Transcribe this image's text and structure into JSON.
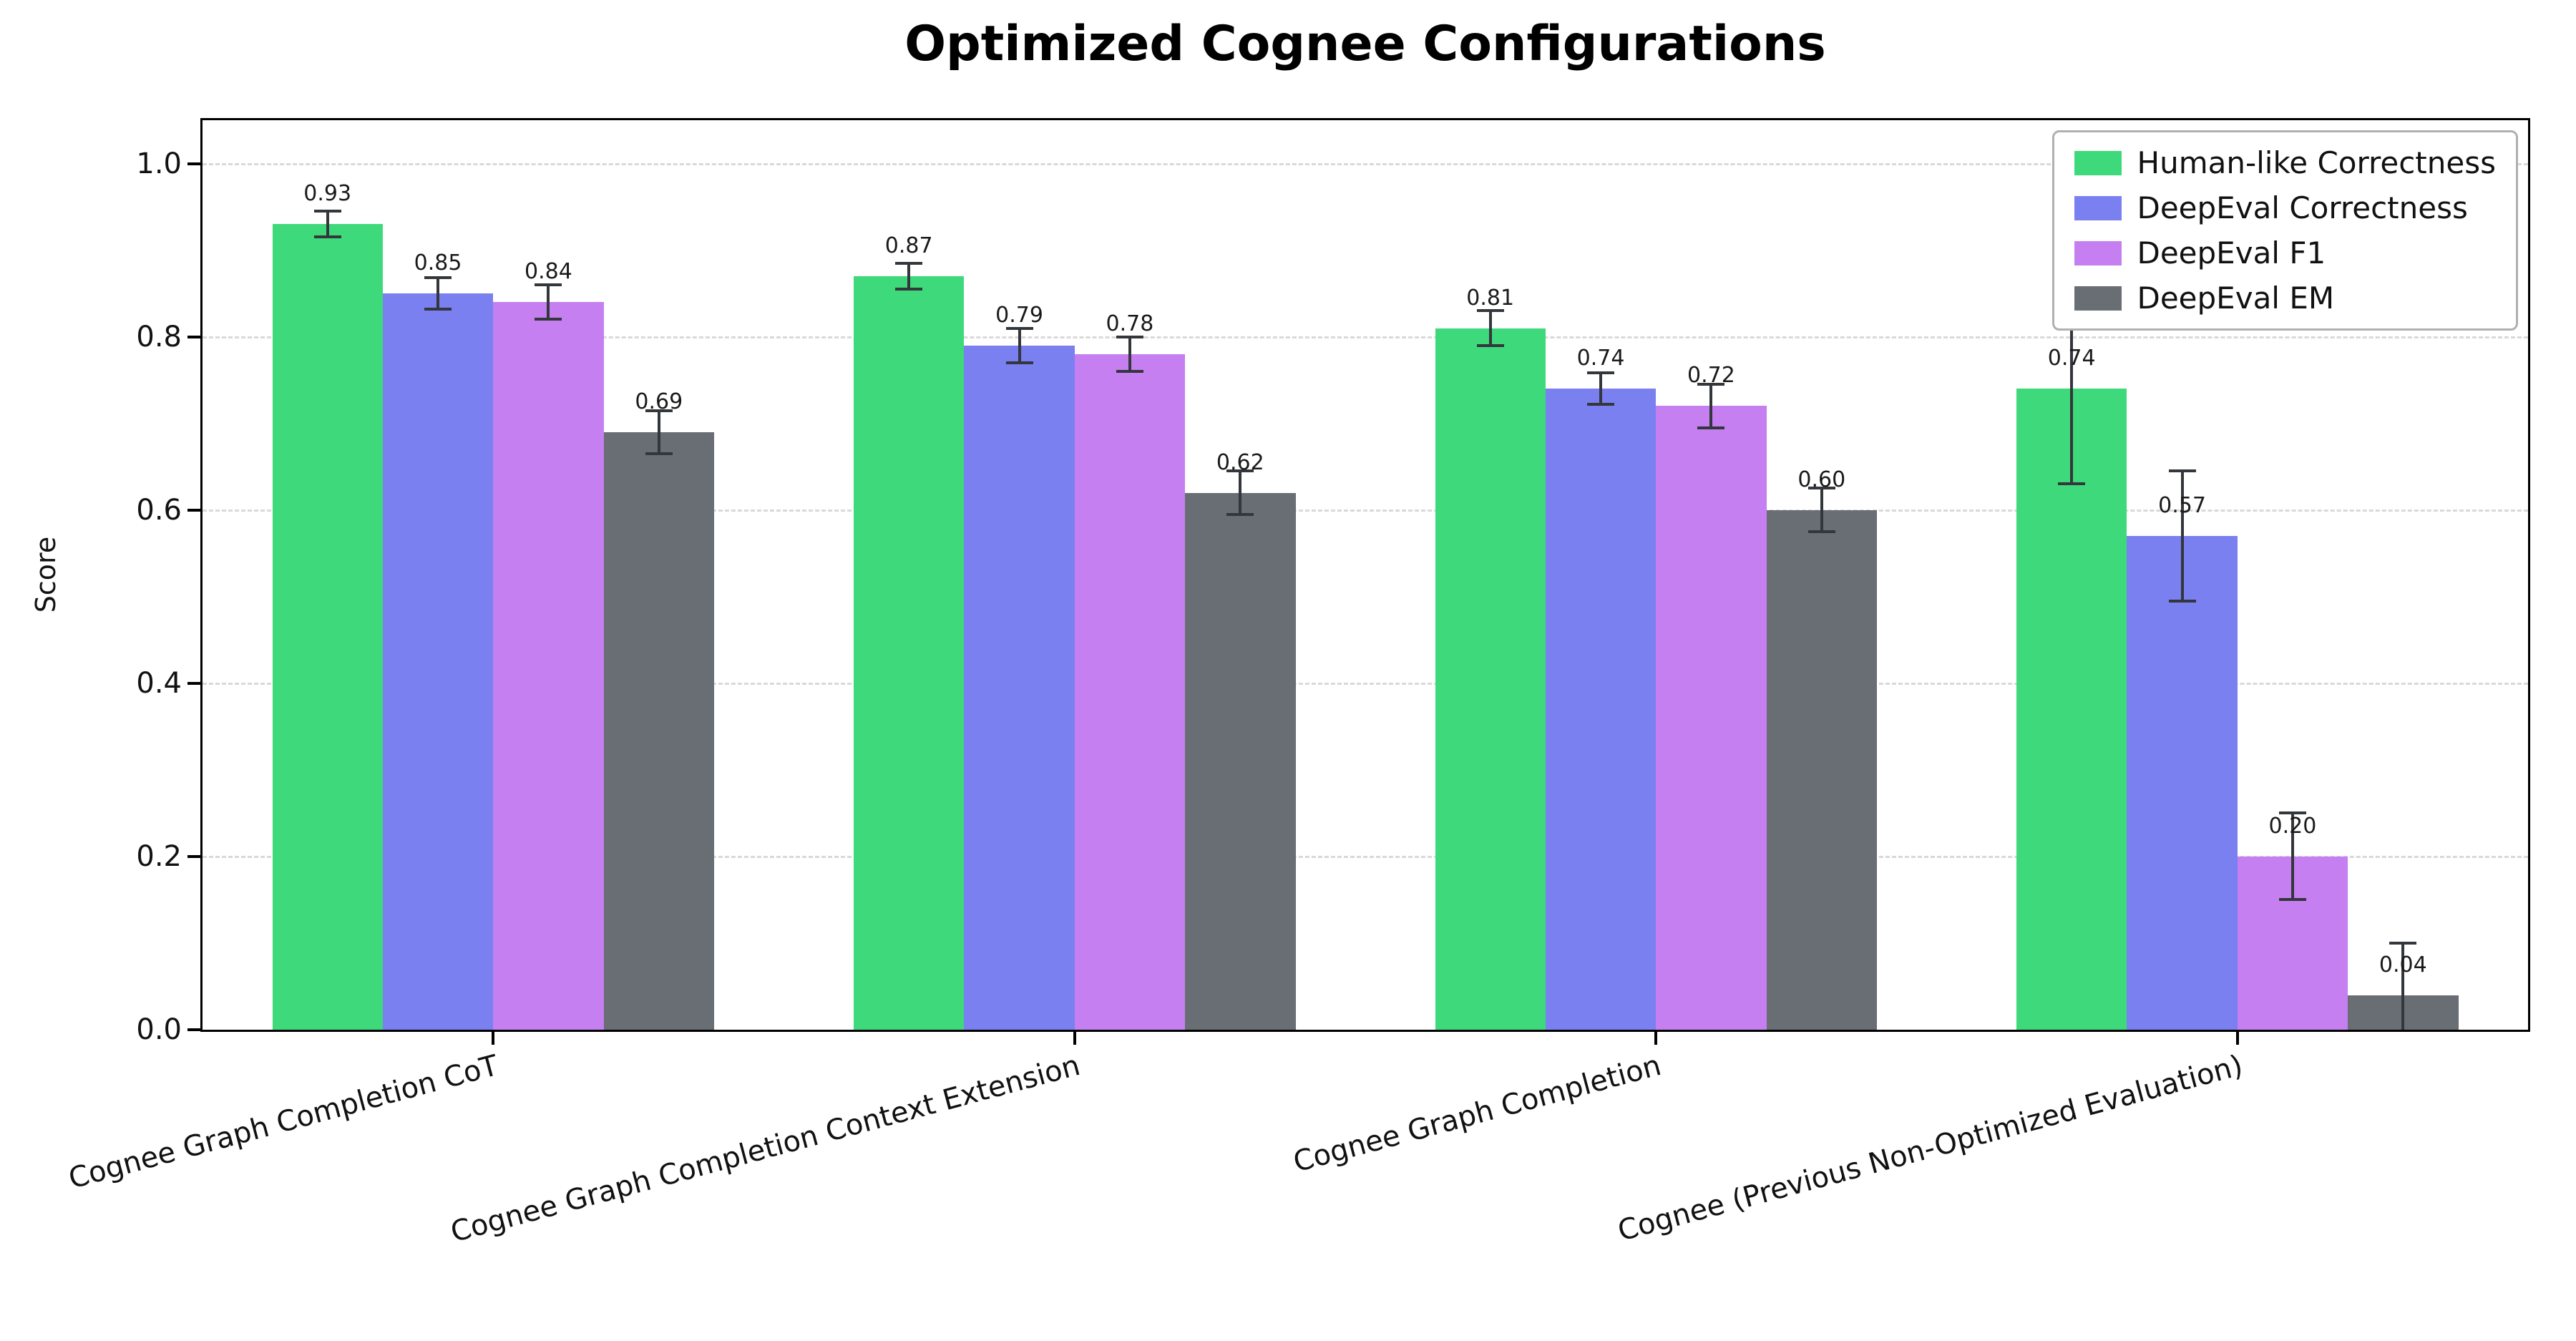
{
  "title": "Optimized Cognee Configurations",
  "chart_data": {
    "type": "bar",
    "title": "Optimized Cognee Configurations",
    "xlabel": "",
    "ylabel": "Score",
    "ylim": [
      0,
      1.05
    ],
    "yticks": [
      0.0,
      0.2,
      0.4,
      0.6,
      0.8,
      1.0
    ],
    "grid": true,
    "legend_position": "upper right",
    "categories": [
      "Cognee Graph Completion CoT",
      "Cognee Graph Completion Context Extension",
      "Cognee Graph Completion",
      "Cognee (Previous Non-Optimized Evaluation)"
    ],
    "series": [
      {
        "name": "Human-like Correctness",
        "color": "#3ed97a",
        "values": [
          0.93,
          0.87,
          0.81,
          0.74
        ],
        "errors": [
          0.015,
          0.015,
          0.02,
          0.11
        ]
      },
      {
        "name": "DeepEval Correctness",
        "color": "#7a80f0",
        "values": [
          0.85,
          0.79,
          0.74,
          0.57
        ],
        "errors": [
          0.018,
          0.02,
          0.018,
          0.075
        ]
      },
      {
        "name": "DeepEval F1",
        "color": "#c57ff0",
        "values": [
          0.84,
          0.78,
          0.72,
          0.2
        ],
        "errors": [
          0.02,
          0.02,
          0.025,
          0.05
        ]
      },
      {
        "name": "DeepEval EM",
        "color": "#696d74",
        "values": [
          0.69,
          0.62,
          0.6,
          0.04
        ],
        "errors": [
          0.025,
          0.025,
          0.025,
          0.06
        ]
      }
    ],
    "error_color": "#33363b"
  }
}
